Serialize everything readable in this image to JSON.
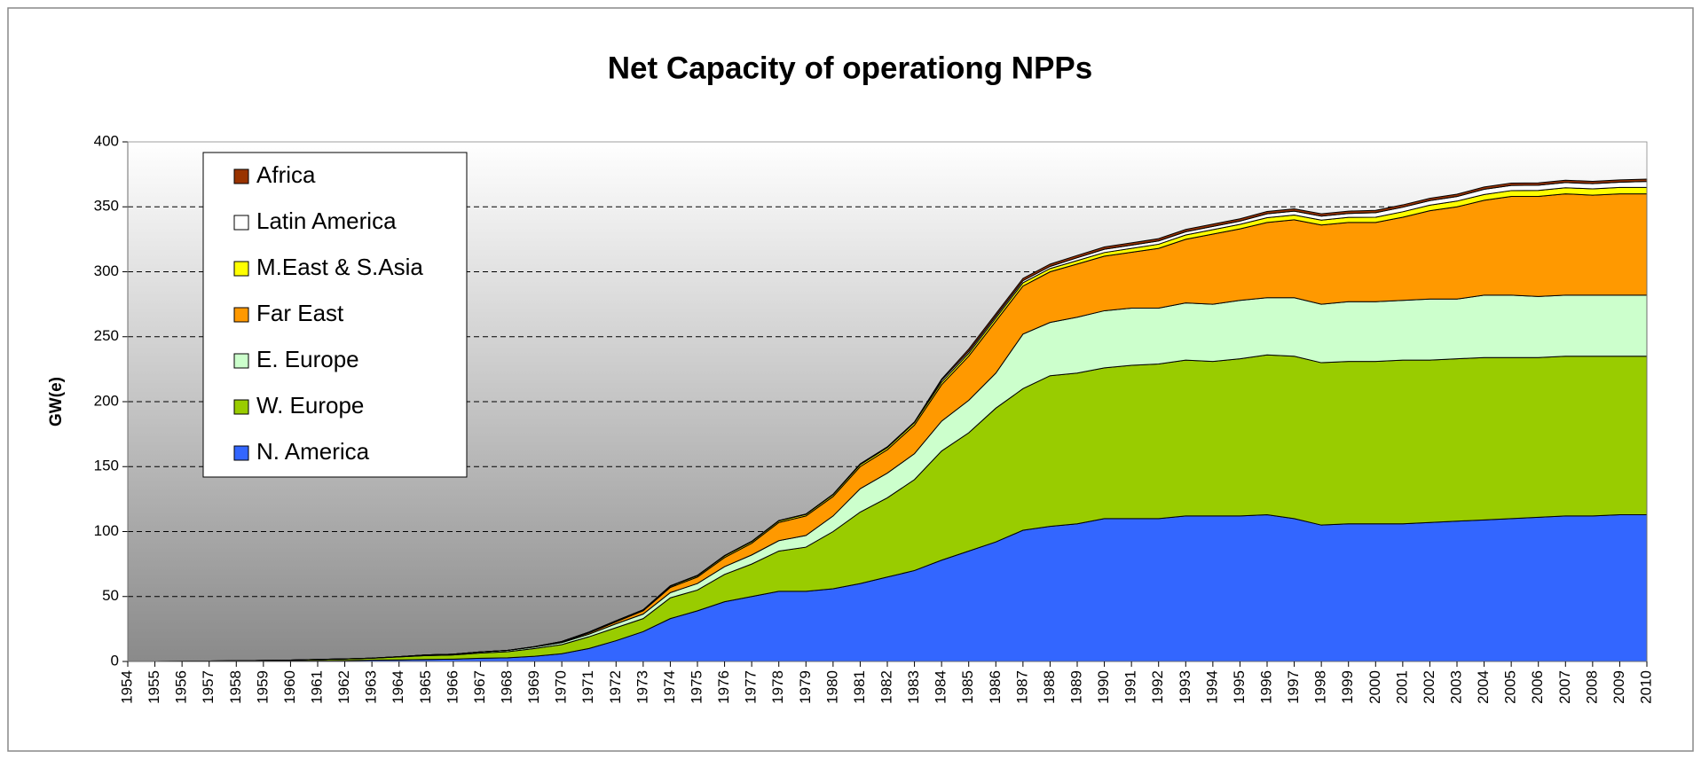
{
  "chart_data": {
    "type": "stacked_area",
    "title": "Net Capacity of operationg NPPs",
    "y_label": "GW(e)",
    "categories": [
      "1954",
      "1955",
      "1956",
      "1957",
      "1958",
      "1959",
      "1960",
      "1961",
      "1962",
      "1963",
      "1964",
      "1965",
      "1966",
      "1967",
      "1968",
      "1969",
      "1970",
      "1971",
      "1972",
      "1973",
      "1974",
      "1975",
      "1976",
      "1977",
      "1978",
      "1979",
      "1980",
      "1981",
      "1982",
      "1983",
      "1984",
      "1985",
      "1986",
      "1987",
      "1988",
      "1989",
      "1990",
      "1991",
      "1992",
      "1993",
      "1994",
      "1995",
      "1996",
      "1997",
      "1998",
      "1999",
      "2000",
      "2001",
      "2002",
      "2003",
      "2004",
      "2005",
      "2006",
      "2007",
      "2008",
      "2009",
      "2010"
    ],
    "series": [
      {
        "name": "N. America",
        "color": "#3366ff",
        "values": [
          0,
          0,
          0,
          0.1,
          0.1,
          0.2,
          0.4,
          0.5,
          0.7,
          1,
          1.2,
          1.5,
          1.8,
          2.5,
          2.8,
          4,
          6,
          10,
          16,
          23,
          33,
          39,
          46,
          50,
          54,
          54,
          56,
          60,
          65,
          70,
          78,
          85,
          92,
          101,
          104,
          106,
          110,
          110,
          110,
          112,
          112,
          112,
          113,
          110,
          105,
          106,
          106,
          106,
          107,
          108,
          109,
          110,
          111,
          112,
          112,
          113,
          113
        ]
      },
      {
        "name": "W. Europe",
        "color": "#99cc00",
        "values": [
          0,
          0,
          0.1,
          0.2,
          0.4,
          0.6,
          0.6,
          1,
          1.3,
          1.5,
          2.3,
          3,
          3.2,
          4,
          4.7,
          6,
          7,
          9,
          10,
          10,
          16,
          16,
          21,
          25,
          31,
          34,
          44,
          55,
          61,
          70,
          84,
          91,
          103,
          109,
          116,
          116,
          116,
          118,
          119,
          120,
          119,
          121,
          123,
          125,
          125,
          125,
          125,
          126,
          125,
          125,
          125,
          124,
          123,
          123,
          123,
          122,
          122
        ]
      },
      {
        "name": "E. Europe",
        "color": "#ccffcc",
        "values": [
          0,
          0,
          0,
          0,
          0,
          0,
          0,
          0,
          0,
          0.1,
          0.2,
          0.5,
          0.6,
          0.8,
          1,
          1.2,
          1.5,
          2,
          3,
          3.5,
          4,
          5,
          6,
          7,
          8,
          9,
          12,
          18,
          19,
          20,
          23,
          25,
          27,
          42,
          41,
          43,
          44,
          44,
          43,
          44,
          44,
          45,
          44,
          45,
          45,
          46,
          46,
          46,
          47,
          46,
          48,
          48,
          47,
          47,
          47,
          47,
          47
        ]
      },
      {
        "name": "Far East",
        "color": "#ff9900",
        "values": [
          0,
          0,
          0,
          0,
          0,
          0,
          0,
          0,
          0,
          0,
          0,
          0,
          0,
          0,
          0,
          0,
          0.5,
          1,
          1.5,
          2.5,
          4,
          5,
          7,
          9,
          14,
          15,
          15,
          17,
          18,
          22,
          28,
          34,
          40,
          37,
          39,
          41,
          42,
          43,
          46,
          49,
          54,
          55,
          58,
          60,
          61,
          61,
          61,
          64,
          68,
          71,
          73,
          76,
          77,
          78,
          77,
          78,
          78
        ]
      },
      {
        "name": "M.East & S.Asia",
        "color": "#ffff00",
        "values": [
          0,
          0,
          0,
          0,
          0,
          0,
          0,
          0,
          0,
          0,
          0,
          0,
          0,
          0,
          0,
          0.2,
          0.4,
          0.6,
          0.8,
          0.8,
          0.9,
          1,
          1.2,
          1.2,
          1.2,
          1.2,
          1.4,
          1.5,
          1.6,
          1.8,
          2,
          2.2,
          2.4,
          2.5,
          2.5,
          2.6,
          2.8,
          3,
          3.2,
          3.3,
          3.4,
          3.5,
          3.6,
          3.7,
          3.8,
          3.9,
          4,
          4.2,
          4.3,
          4.4,
          4.5,
          4.5,
          4.6,
          4.7,
          4.8,
          4.9,
          5
        ]
      },
      {
        "name": "Latin America",
        "color": "#ffffff",
        "values": [
          0,
          0,
          0,
          0,
          0,
          0,
          0,
          0,
          0,
          0,
          0,
          0,
          0,
          0,
          0,
          0,
          0,
          0,
          0,
          0,
          0.3,
          0.3,
          0.3,
          0.3,
          0.3,
          0.3,
          0.3,
          0.6,
          0.6,
          0.6,
          1.5,
          1.5,
          1.5,
          1.6,
          1.6,
          2.2,
          2.5,
          2.5,
          2.5,
          2.5,
          2.5,
          2.5,
          3,
          3,
          3,
          3,
          3.5,
          3.5,
          3.5,
          3.5,
          4,
          4,
          4,
          4,
          4,
          4,
          4.5
        ]
      },
      {
        "name": "Africa",
        "color": "#993300",
        "values": [
          0,
          0,
          0,
          0,
          0,
          0,
          0,
          0,
          0,
          0,
          0,
          0,
          0,
          0,
          0,
          0,
          0,
          0,
          0,
          0,
          0,
          0,
          0,
          0,
          0,
          0,
          0,
          0,
          0,
          0,
          0.9,
          1.8,
          1.8,
          1.8,
          1.8,
          1.8,
          1.8,
          1.8,
          1.8,
          1.8,
          1.8,
          1.8,
          1.8,
          1.8,
          1.8,
          1.8,
          1.8,
          1.8,
          1.8,
          1.8,
          1.8,
          1.8,
          1.8,
          1.8,
          1.8,
          1.8,
          1.8
        ]
      }
    ],
    "ylim": [
      0,
      400
    ],
    "yticks": [
      0,
      50,
      100,
      150,
      200,
      250,
      300,
      350,
      400
    ],
    "grid": true,
    "legend": "upper left"
  }
}
